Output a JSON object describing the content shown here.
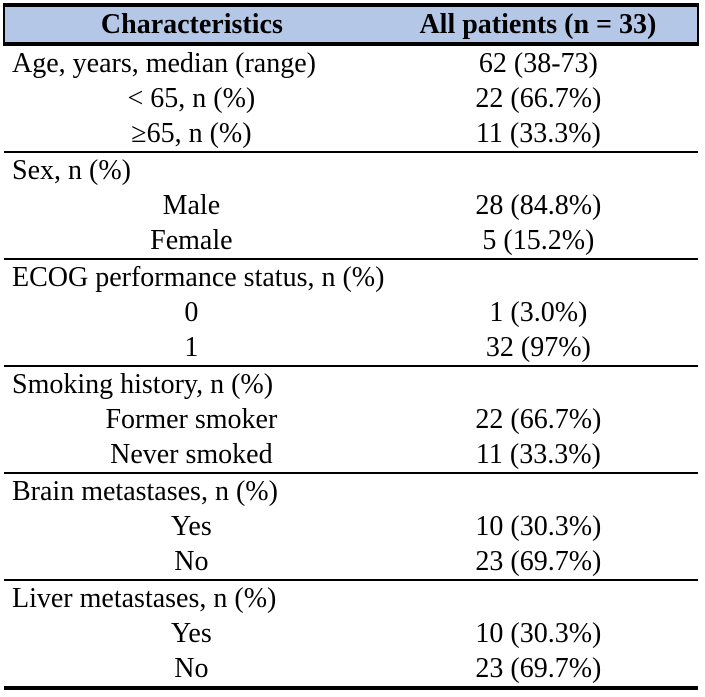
{
  "header": {
    "characteristics": "Characteristics",
    "all_patients": "All patients (n = 33)"
  },
  "colors": {
    "header_bg": "#B4C7E6",
    "border": "#000000",
    "text": "#000000"
  },
  "rows": [
    {
      "label": "Age, years, median (range)",
      "value": "62 (38-73)"
    },
    {
      "label": "< 65, n (%)",
      "value": "22 (66.7%)"
    },
    {
      "label": "≥65, n (%)",
      "value": "11 (33.3%)"
    },
    {
      "label": "Sex, n (%)",
      "value": ""
    },
    {
      "label": "Male",
      "value": "28 (84.8%)"
    },
    {
      "label": "Female",
      "value": "5 (15.2%)"
    },
    {
      "label": "ECOG performance status, n (%)",
      "value": ""
    },
    {
      "label": "0",
      "value": "1 (3.0%)"
    },
    {
      "label": "1",
      "value": "32 (97%)"
    },
    {
      "label": "Smoking history, n (%)",
      "value": ""
    },
    {
      "label": "Former smoker",
      "value": "22 (66.7%)"
    },
    {
      "label": "Never smoked",
      "value": "11 (33.3%)"
    },
    {
      "label": "Brain metastases, n (%)",
      "value": ""
    },
    {
      "label": "Yes",
      "value": "10 (30.3%)"
    },
    {
      "label": "No",
      "value": "23 (69.7%)"
    },
    {
      "label": "Liver metastases, n (%)",
      "value": ""
    },
    {
      "label": "Yes",
      "value": "10 (30.3%)"
    },
    {
      "label": "No",
      "value": "23 (69.7%)"
    }
  ]
}
